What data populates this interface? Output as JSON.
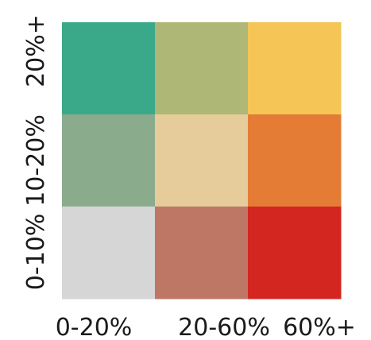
{
  "chart_data": {
    "type": "heatmap",
    "title": "",
    "xlabel": "",
    "ylabel": "",
    "x_categories": [
      "0-20%",
      "20-60%",
      "60%+"
    ],
    "y_categories": [
      "0-10%",
      "10-20%",
      "20%+"
    ],
    "cells": [
      {
        "x": "0-20%",
        "y": "20%+",
        "color": "#3aa98a"
      },
      {
        "x": "20-60%",
        "y": "20%+",
        "color": "#afb776"
      },
      {
        "x": "60%+",
        "y": "20%+",
        "color": "#f5c556"
      },
      {
        "x": "0-20%",
        "y": "10-20%",
        "color": "#8bab8d"
      },
      {
        "x": "20-60%",
        "y": "10-20%",
        "color": "#e5cc9a"
      },
      {
        "x": "60%+",
        "y": "10-20%",
        "color": "#e57c36"
      },
      {
        "x": "0-20%",
        "y": "0-10%",
        "color": "#d6d6d6"
      },
      {
        "x": "20-60%",
        "y": "0-10%",
        "color": "#be7764"
      },
      {
        "x": "60%+",
        "y": "0-10%",
        "color": "#d42620"
      }
    ],
    "grid": false,
    "legend": "none"
  }
}
